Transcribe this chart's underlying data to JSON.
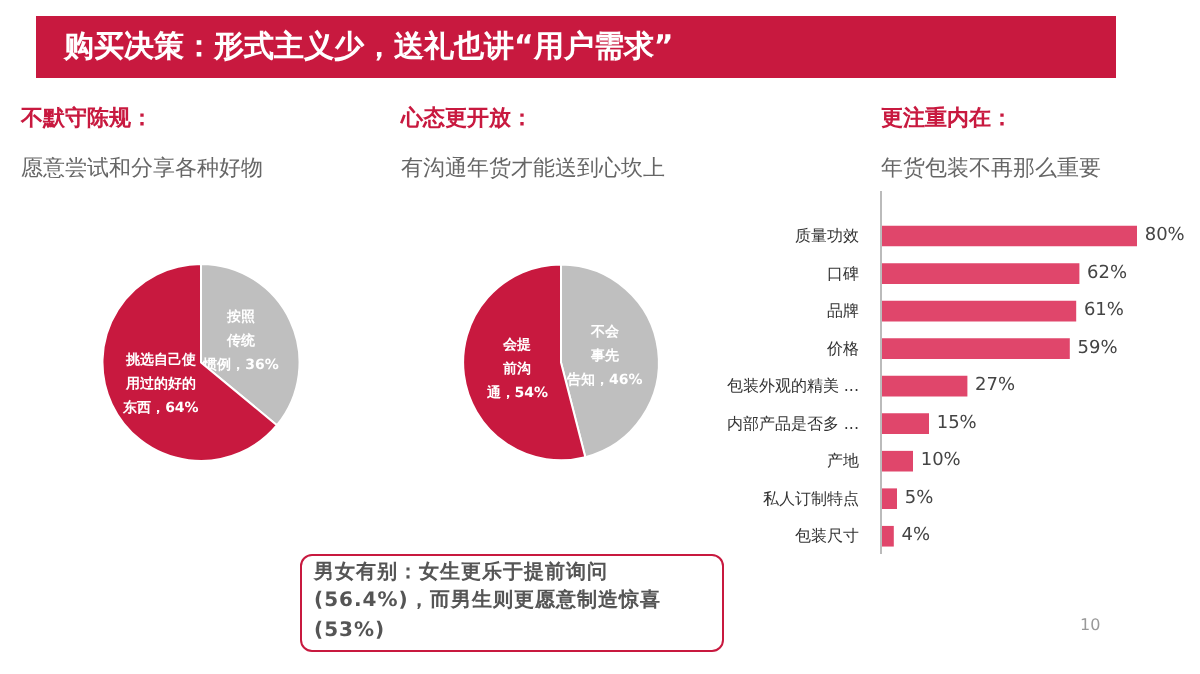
{
  "chart_data": [
    {
      "type": "pie",
      "title": "不默守陈规：",
      "subtitle": "愿意尝试和分享各种好物",
      "categories": [
        "按照传统惯例",
        "挑选自己使用过的好的东西"
      ],
      "values": [
        36,
        64
      ],
      "colors": [
        "#bfbfbf",
        "#c8193f"
      ],
      "value_labels": [
        "，36%",
        "，64%"
      ],
      "annotations": [
        "购买决策：形式主义少，送礼也讲“用户需求”"
      ]
    },
    {
      "type": "pie",
      "title": "心态更开放：",
      "subtitle": "有沟通年货才能送到心坎上",
      "categories": [
        "不会事先告知",
        "会提前沟通"
      ],
      "values": [
        46,
        54
      ],
      "colors": [
        "#bfbfbf",
        "#c8193f"
      ],
      "value_labels": [
        "，46%",
        "，54%"
      ],
      "annotations": [
        "男女有别：女生更乐于提前询问(56.4%)，而男生则更愿意制造惊喜(53%)"
      ]
    },
    {
      "type": "bar",
      "orientation": "horizontal",
      "title": "更注重内在：",
      "subtitle": "年货包装不再那么重要",
      "categories": [
        "质量功效",
        "口碑",
        "品牌",
        "价格",
        "包装外观的精美 ...",
        "内部产品是否多 ...",
        "产地",
        "私人订制特点",
        "包装尺寸"
      ],
      "values": [
        80,
        62,
        61,
        59,
        27,
        15,
        10,
        5,
        4
      ],
      "color": "#e0466b",
      "value_labels": [
        "80%",
        "62%",
        "61%",
        "59%",
        "27%",
        "15%",
        "10%",
        "5%",
        "4%"
      ],
      "annotations": [
        "10"
      ]
    }
  ]
}
